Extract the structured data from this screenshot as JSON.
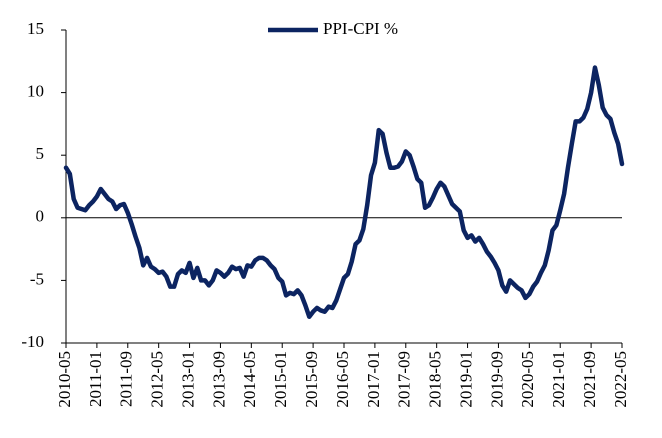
{
  "chart_data": {
    "type": "line",
    "categories": [
      "2010-05",
      null,
      null,
      null,
      null,
      null,
      null,
      null,
      "2011-01",
      null,
      null,
      null,
      null,
      null,
      null,
      null,
      "2011-09",
      null,
      null,
      null,
      null,
      null,
      null,
      null,
      "2012-05",
      null,
      null,
      null,
      null,
      null,
      null,
      null,
      "2013-01",
      null,
      null,
      null,
      null,
      null,
      null,
      null,
      "2013-09",
      null,
      null,
      null,
      null,
      null,
      null,
      null,
      "2014-05",
      null,
      null,
      null,
      null,
      null,
      null,
      null,
      "2015-01",
      null,
      null,
      null,
      null,
      null,
      null,
      null,
      "2015-09",
      null,
      null,
      null,
      null,
      null,
      null,
      null,
      "2016-05",
      null,
      null,
      null,
      null,
      null,
      null,
      null,
      "2017-01",
      null,
      null,
      null,
      null,
      null,
      null,
      null,
      "2017-09",
      null,
      null,
      null,
      null,
      null,
      null,
      null,
      "2018-05",
      null,
      null,
      null,
      null,
      null,
      null,
      null,
      "2019-01",
      null,
      null,
      null,
      null,
      null,
      null,
      null,
      "2019-09",
      null,
      null,
      null,
      null,
      null,
      null,
      null,
      "2020-05",
      null,
      null,
      null,
      null,
      null,
      null,
      null,
      "2021-01",
      null,
      null,
      null,
      null,
      null,
      null,
      null,
      "2021-09",
      null,
      null,
      null,
      null,
      null,
      null,
      null,
      "2022-05"
    ],
    "series": [
      {
        "name": "PPI-CPI %",
        "color": "#0c2461",
        "values": [
          4.0,
          3.5,
          1.5,
          0.8,
          0.7,
          0.6,
          1.0,
          1.3,
          1.7,
          2.3,
          1.9,
          1.5,
          1.3,
          0.7,
          1.0,
          1.1,
          0.4,
          -0.5,
          -1.5,
          -2.4,
          -3.8,
          -3.2,
          -3.9,
          -4.1,
          -4.4,
          -4.3,
          -4.7,
          -5.5,
          -5.5,
          -4.5,
          -4.2,
          -4.4,
          -3.6,
          -4.8,
          -4.0,
          -5.0,
          -5.0,
          -5.4,
          -5.0,
          -4.2,
          -4.4,
          -4.7,
          -4.4,
          -3.9,
          -4.1,
          -4.0,
          -4.7,
          -3.8,
          -3.9,
          -3.4,
          -3.2,
          -3.2,
          -3.4,
          -3.8,
          -4.1,
          -4.8,
          -5.1,
          -6.2,
          -6.0,
          -6.1,
          -5.8,
          -6.2,
          -7.0,
          -7.9,
          -7.5,
          -7.2,
          -7.4,
          -7.5,
          -7.1,
          -7.2,
          -6.6,
          -5.7,
          -4.8,
          -4.5,
          -3.5,
          -2.1,
          -1.8,
          -0.9,
          1.0,
          3.4,
          4.4,
          7.0,
          6.7,
          5.2,
          4.0,
          4.0,
          4.1,
          4.5,
          5.3,
          5.0,
          4.1,
          3.1,
          2.8,
          0.8,
          1.0,
          1.6,
          2.3,
          2.8,
          2.5,
          1.8,
          1.1,
          0.8,
          0.5,
          -1.0,
          -1.6,
          -1.4,
          -1.9,
          -1.6,
          -2.1,
          -2.7,
          -3.1,
          -3.6,
          -4.2,
          -5.4,
          -5.9,
          -5.0,
          -5.3,
          -5.6,
          -5.8,
          -6.4,
          -6.1,
          -5.5,
          -5.1,
          -4.4,
          -3.8,
          -2.6,
          -1.0,
          -0.6,
          0.6,
          1.9,
          4.0,
          5.9,
          7.7,
          7.7,
          8.0,
          8.7,
          10.0,
          12.0,
          10.6,
          8.8,
          8.2,
          7.9,
          6.8,
          5.9,
          4.3
        ]
      }
    ],
    "ylim": [
      -10,
      15
    ],
    "yticks": [
      -10,
      -5,
      0,
      5,
      10,
      15
    ],
    "grid": false,
    "legend": "top"
  }
}
